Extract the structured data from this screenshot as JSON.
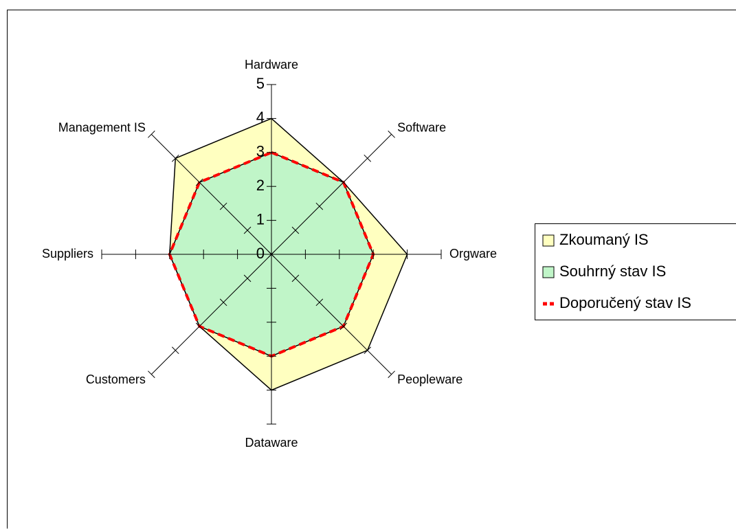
{
  "chart_data": {
    "type": "radar",
    "categories": [
      "Hardware",
      "Software",
      "Orgware",
      "Peopleware",
      "Dataware",
      "Customers",
      "Suppliers",
      "Management IS"
    ],
    "series": [
      {
        "name": "Zkoumaný IS",
        "color": "#ffffc0",
        "values": [
          4,
          3,
          4,
          4,
          4,
          3,
          3,
          4
        ]
      },
      {
        "name": "Souhrný stav IS",
        "color": "#c0f5c8",
        "values": [
          3,
          3,
          3,
          3,
          3,
          3,
          3,
          3
        ]
      },
      {
        "name": "Doporučený stav IS",
        "color": "#ff0000",
        "values": [
          3,
          3,
          3,
          3,
          3,
          3,
          3,
          3
        ]
      }
    ],
    "rlim": [
      0,
      5
    ],
    "rticks": [
      0,
      1,
      2,
      3,
      4,
      5
    ],
    "legend": "right"
  }
}
